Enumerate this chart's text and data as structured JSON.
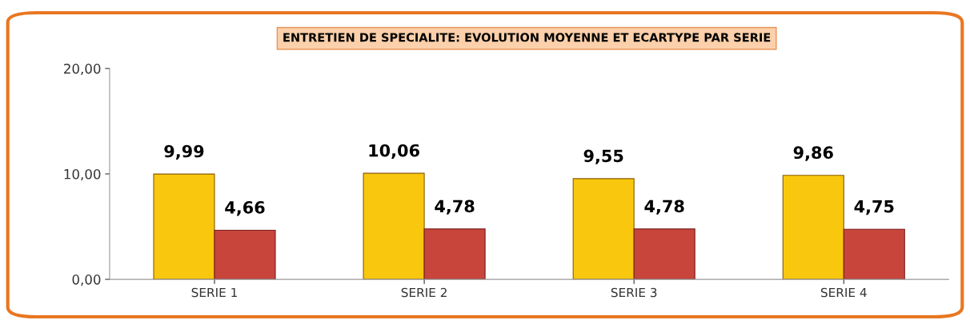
{
  "chart_data": {
    "type": "bar",
    "title": "ENTRETIEN DE SPECIALITE: EVOLUTION MOYENNE ET ECARTYPE PAR SERIE",
    "categories": [
      "SERIE 1",
      "SERIE 2",
      "SERIE 3",
      "SERIE 4"
    ],
    "series": [
      {
        "color": "#f9c80e",
        "values": [
          9.99,
          10.06,
          9.55,
          9.86
        ],
        "value_labels": [
          "9,99",
          "10,06",
          "9,55",
          "9,86"
        ]
      },
      {
        "color": "#c8453c",
        "values": [
          4.66,
          4.78,
          4.78,
          4.75
        ],
        "value_labels": [
          "4,66",
          "4,78",
          "4,78",
          "4,75"
        ]
      }
    ],
    "ylim": [
      0,
      20
    ],
    "yticks": [
      {
        "value": 0,
        "label": "0,00"
      },
      {
        "value": 10,
        "label": "10,00"
      },
      {
        "value": 20,
        "label": "20,00"
      }
    ],
    "grid": false,
    "legend": false
  }
}
